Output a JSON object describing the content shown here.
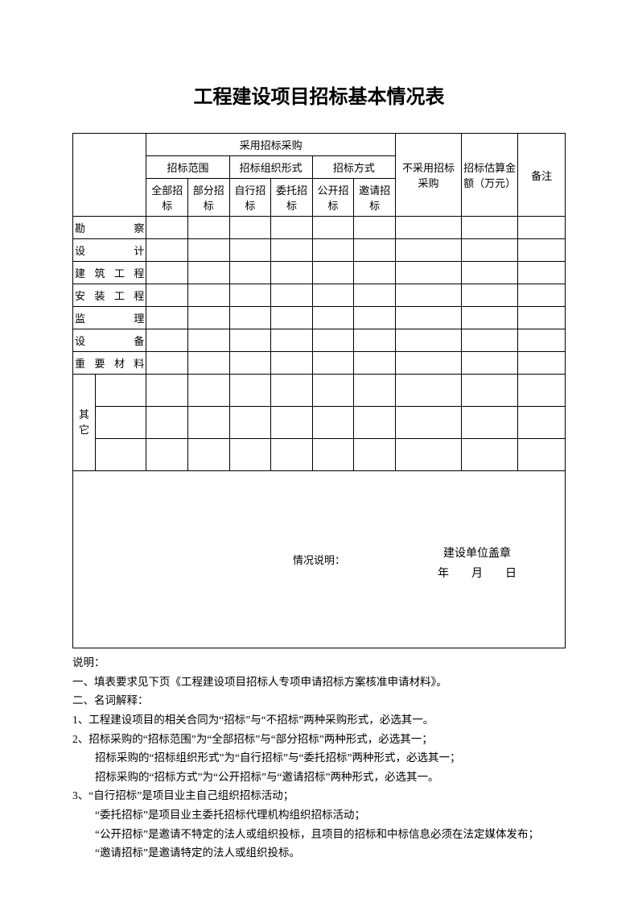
{
  "title": "工程建设项目招标基本情况表",
  "table": {
    "header": {
      "procure": "采用招标采购",
      "scope": "招标范围",
      "orgform": "招标组织形式",
      "method": "招标方式",
      "nouse": "不采用招标采购",
      "amount": "招标估算金额（万元）",
      "remark": "备注",
      "scope_all": "全部招标",
      "scope_part": "部分招标",
      "org_self": "自行招标",
      "org_agent": "委托招标",
      "m_open": "公开招标",
      "m_invite": "邀请招标"
    },
    "rows": {
      "survey": "勘　　察",
      "design": "设　　计",
      "build": "建筑工程",
      "install": "安装工程",
      "supervise": "监　　理",
      "equip": "设　　备",
      "material": "重要材料",
      "other": "其它"
    },
    "desc_label": "情况说明：",
    "stamp": {
      "unit": "建设单位盖章",
      "date": "年　　月　　日"
    }
  },
  "notes": {
    "head": "说明：",
    "l1": "一、填表要求见下页《工程建设项目招标人专项申请招标方案核准申请材料》。",
    "l2": "二、名词解释：",
    "n1": "1、工程建设项目的相关合同为“招标”与“不招标”两种采购形式，必选其一。",
    "n2": "2、招标采购的“招标范围”为“全部招标”与“部分招标”两种形式，必选其一；",
    "n2b": "招标采购的“招标组织形式”为“自行招标”与“委托招标”两种形式，必选其一；",
    "n2c": "招标采购的“招标方式”为“公开招标”与“邀请招标”两种形式，必选其一。",
    "n3": "3、“自行招标”是项目业主自己组织招标活动；",
    "n3b": "“委托招标”是项目业主委托招标代理机构组织招标活动；",
    "n3c": "“公开招标”是邀请不特定的法人或组织投标，且项目的招标和中标信息必须在法定媒体发布；",
    "n3d": "“邀请招标”是邀请特定的法人或组织投标。"
  }
}
